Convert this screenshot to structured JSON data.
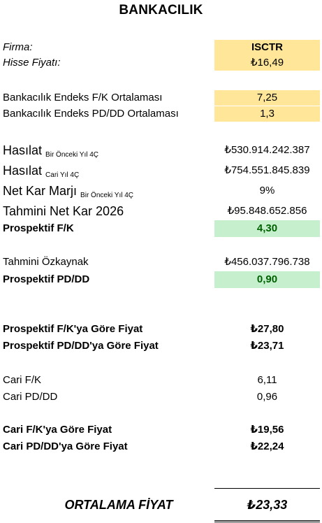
{
  "title": "BANKACILIK",
  "firma": {
    "label": "Firma:",
    "value": "ISCTR"
  },
  "hisse_fiyati": {
    "label": "Hisse Fiyatı:",
    "value": "₺16,49"
  },
  "endeks_fk": {
    "label": "Bankacılık  Endeks F/K Ortalaması",
    "value": "7,25"
  },
  "endeks_pddd": {
    "label": "Bankacılık Endeks PD/DD Ortalaması",
    "value": "1,3"
  },
  "hasilat_onceki": {
    "label": "Hasılat",
    "sub": "Bir Önceki Yıl 4Ç",
    "value": "₺530.914.242.387"
  },
  "hasilat_cari": {
    "label": "Hasılat",
    "sub": "Cari Yıl 4Ç",
    "value": "₺754.551.845.839"
  },
  "net_kar_marji": {
    "label": "Net Kar Marjı",
    "sub": "Bir Önceki Yıl 4Ç",
    "value": "9%"
  },
  "tahmini_net_kar": {
    "label": "Tahmini Net Kar 2026",
    "value": "₺95.848.652.856"
  },
  "prospektif_fk": {
    "label": "Prospektif F/K",
    "value": "4,30"
  },
  "tahmini_ozkaynak": {
    "label": "Tahmini Özkaynak",
    "value": "₺456.037.796.738"
  },
  "prospektif_pddd": {
    "label": "Prospektif PD/DD",
    "value": "0,90"
  },
  "fk_gore_fiyat": {
    "label": "Prospektif F/K'ya Göre Fiyat",
    "value": "₺27,80"
  },
  "pddd_gore_fiyat": {
    "label": "Prospektif PD/DD'ya Göre Fiyat",
    "value": "₺23,71"
  },
  "cari_fk": {
    "label": "Cari F/K",
    "value": "6,11"
  },
  "cari_pddd": {
    "label": "Cari PD/DD",
    "value": "0,96"
  },
  "cari_fk_fiyat": {
    "label": "Cari F/K'ya Göre Fiyat",
    "value": "₺19,56"
  },
  "cari_pddd_fiyat": {
    "label": "Cari PD/DD'ya Göre Fiyat",
    "value": "₺22,24"
  },
  "ortalama": {
    "label": "ORTALAMA FİYAT",
    "value": "₺23,33"
  },
  "colors": {
    "input_fill": "#ffe699",
    "result_fill": "#c6efce",
    "result_text": "#006100"
  }
}
